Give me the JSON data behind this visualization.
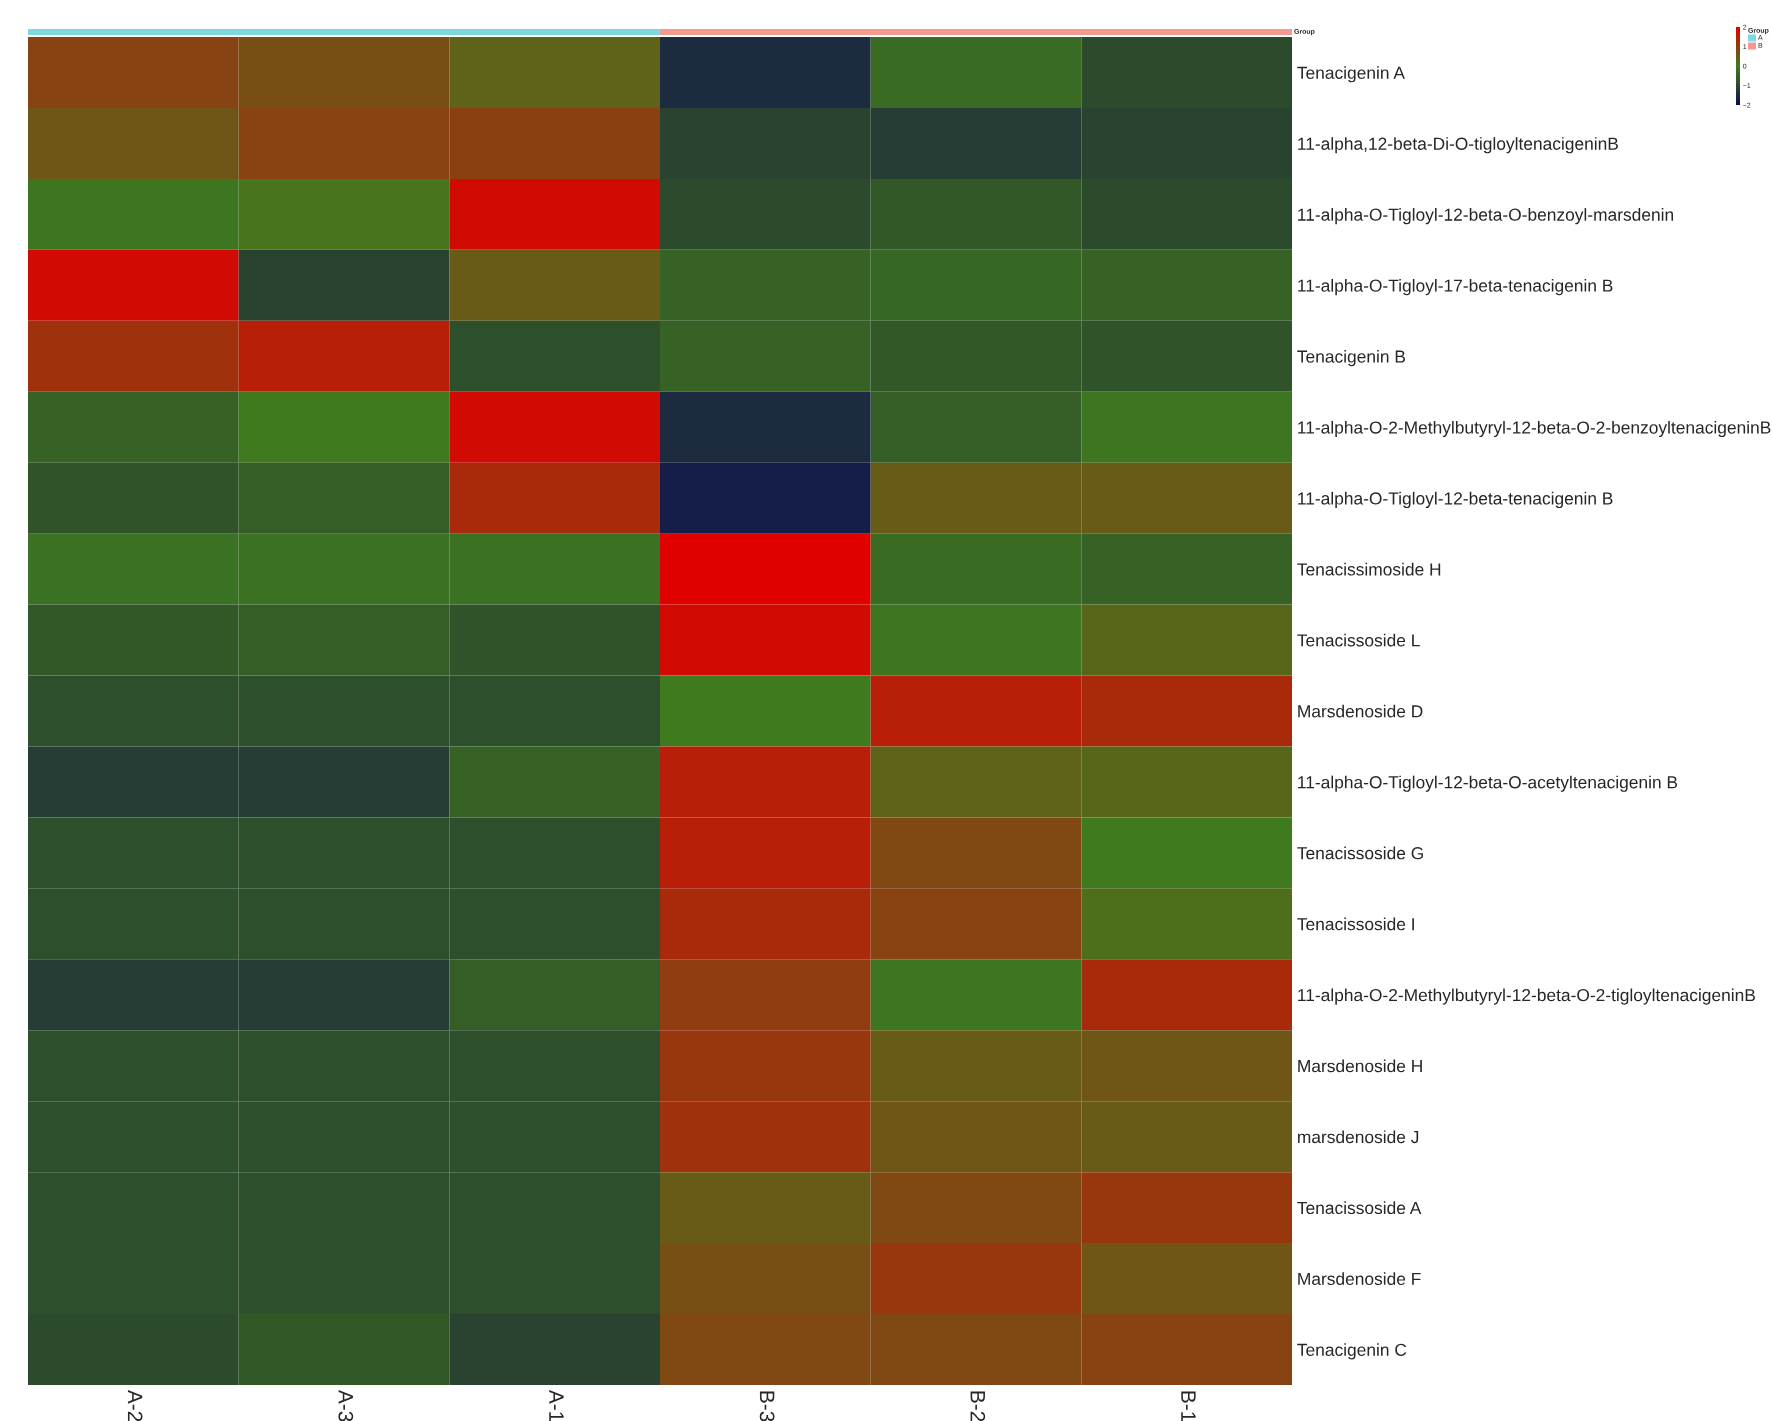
{
  "chart_data": [
    {
      "type": "heatmap",
      "categories": [
        "A-2",
        "A-3",
        "A-1",
        "B-3",
        "B-2",
        "B-1"
      ],
      "y_categories": [
        "Tenacigenin A",
        "11-alpha,12-beta-Di-O-tigloyltenacigeninB",
        "11-alpha-O-Tigloyl-12-beta-O-benzoyl-marsdenin",
        "11-alpha-O-Tigloyl-17-beta-tenacigenin B",
        "Tenacigenin B",
        "11-alpha-O-2-Methylbutyryl-12-beta-O-2-benzoyltenacigeninB",
        "11-alpha-O-Tigloyl-12-beta-tenacigenin B",
        "Tenacissimoside H",
        "Tenacissoside L",
        "Marsdenoside D",
        "11-alpha-O-Tigloyl-12-beta-O-acetyltenacigenin B",
        "Tenacissoside G",
        "Tenacissoside I",
        "11-alpha-O-2-Methylbutyryl-12-beta-O-2-tigloyltenacigeninB",
        "Marsdenoside H",
        "marsdenoside J",
        "Tenacissoside A",
        "Marsdenoside F",
        "Tenacigenin C"
      ],
      "cells": [
        [
          0.9,
          0.7,
          0.4,
          -1.5,
          -0.3,
          -1.0
        ],
        [
          0.6,
          0.9,
          0.95,
          -1.1,
          -1.2,
          -1.1
        ],
        [
          -0.1,
          0.1,
          1.8,
          -1.0,
          -0.7,
          -1.0
        ],
        [
          1.8,
          -1.1,
          0.5,
          -0.5,
          -0.4,
          -0.5
        ],
        [
          1.2,
          1.5,
          -0.9,
          -0.5,
          -0.7,
          -0.8
        ],
        [
          -0.5,
          0.0,
          1.8,
          -1.5,
          -0.6,
          -0.1
        ],
        [
          -0.8,
          -0.6,
          1.3,
          -1.7,
          0.5,
          0.5
        ],
        [
          -0.2,
          -0.2,
          -0.2,
          2.0,
          -0.3,
          -0.5
        ],
        [
          -0.7,
          -0.6,
          -0.8,
          1.8,
          -0.1,
          0.3
        ],
        [
          -0.9,
          -0.9,
          -0.9,
          0.0,
          1.5,
          1.3
        ],
        [
          -1.2,
          -1.2,
          -0.5,
          1.5,
          0.4,
          0.3
        ],
        [
          -0.9,
          -0.9,
          -0.9,
          1.5,
          0.8,
          0.0
        ],
        [
          -0.9,
          -0.9,
          -0.9,
          1.3,
          0.9,
          0.2
        ],
        [
          -1.2,
          -1.2,
          -0.6,
          1.0,
          -0.1,
          1.3
        ],
        [
          -0.9,
          -0.9,
          -0.9,
          1.1,
          0.5,
          0.6
        ],
        [
          -0.9,
          -0.9,
          -0.9,
          1.2,
          0.6,
          0.5
        ],
        [
          -0.9,
          -0.9,
          -0.9,
          0.5,
          0.8,
          1.1
        ],
        [
          -0.9,
          -0.9,
          -0.9,
          0.7,
          1.1,
          0.6
        ],
        [
          -1.0,
          -0.7,
          -1.1,
          0.8,
          0.8,
          0.9
        ]
      ],
      "clim": [
        -2,
        2
      ],
      "cticks": [
        {
          "value": -2,
          "label": "−2"
        },
        {
          "value": -1,
          "label": "−1"
        },
        0,
        1,
        2
      ],
      "annotations": [
        "Group"
      ]
    },
    {
      "type": "other",
      "title": "Group",
      "annotations": [
        "A",
        "B"
      ]
    }
  ]
}
